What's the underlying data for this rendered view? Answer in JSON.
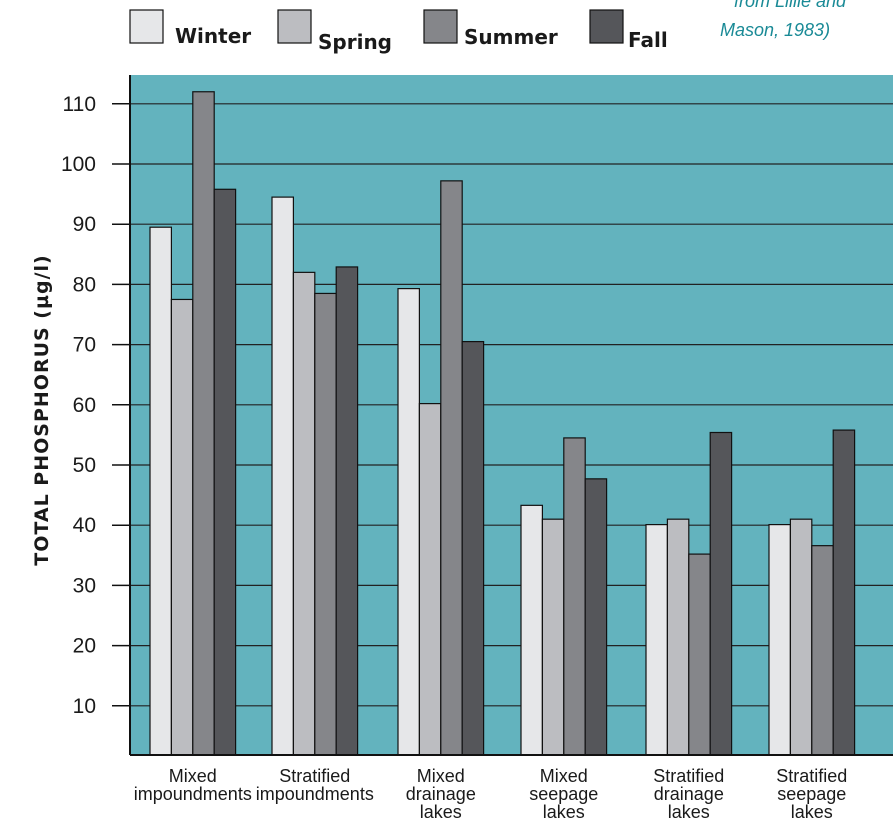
{
  "chart_data": {
    "type": "bar",
    "categories": [
      [
        "Mixed",
        "impoundments"
      ],
      [
        "Stratified",
        "impoundments"
      ],
      [
        "Mixed",
        "drainage",
        "lakes"
      ],
      [
        "Mixed",
        "seepage",
        "lakes"
      ],
      [
        "Stratified",
        "drainage",
        "lakes"
      ],
      [
        "Stratified",
        "seepage",
        "lakes"
      ]
    ],
    "series": [
      {
        "name": "Winter",
        "color": "#e6e7e9",
        "values": [
          89.5,
          94.5,
          79.3,
          43.3,
          40.1,
          40.1
        ]
      },
      {
        "name": "Spring",
        "color": "#bcbdc1",
        "values": [
          77.5,
          82.0,
          60.2,
          41.0,
          41.0,
          41.0
        ]
      },
      {
        "name": "Summer",
        "color": "#85868a",
        "values": [
          112.0,
          78.5,
          97.2,
          54.5,
          35.2,
          36.6
        ]
      },
      {
        "name": "Fall",
        "color": "#55565a",
        "values": [
          95.8,
          82.9,
          70.5,
          47.7,
          55.4,
          55.8
        ]
      }
    ],
    "ylabel": "TOTAL PHOSPHORUS (µg/l)",
    "xlabel": "",
    "ylim": [
      0,
      115
    ],
    "yticks": [
      10,
      20,
      30,
      40,
      50,
      60,
      70,
      80,
      90,
      100,
      110
    ],
    "grid": true,
    "legend_position": "top",
    "source_lines": [
      "from Lillie and",
      "Mason, 1983)"
    ],
    "plot_background": "#63b3be"
  }
}
